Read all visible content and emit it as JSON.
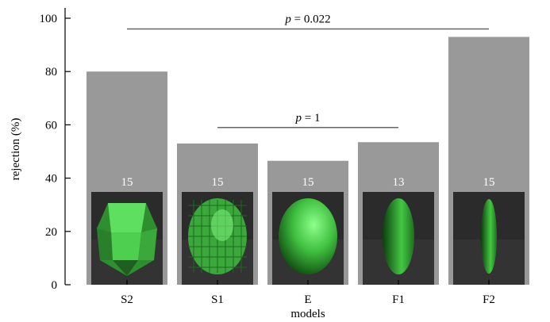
{
  "chart_data": {
    "type": "bar",
    "title": "",
    "xlabel": "models",
    "ylabel": "rejection (%)",
    "ylim": [
      0,
      105
    ],
    "yticks": [
      0,
      20,
      40,
      60,
      80,
      100
    ],
    "categories": [
      "S2",
      "S1",
      "E",
      "F1",
      "F2"
    ],
    "values": [
      80,
      53,
      46.5,
      53.5,
      93
    ],
    "n_labels": [
      "15",
      "15",
      "15",
      "13",
      "15"
    ],
    "thumbnails": [
      "polyhedron-coarse-icon",
      "polyhedron-fine-icon",
      "ellipsoid-icon",
      "flat-ellipsoid-icon",
      "very-flat-ellipsoid-icon"
    ],
    "bar_color": "#999999",
    "thumbnail_bg": "#2b2b2b",
    "shape_color": "#3fbf3f",
    "comparisons": [
      {
        "from": "S1",
        "to": "F1",
        "p_label": "p",
        "p_value": "= 1",
        "y": 59
      },
      {
        "from": "S2",
        "to": "F2",
        "p_label": "p",
        "p_value": "= 0.022",
        "y": 96
      }
    ],
    "grid": false
  }
}
